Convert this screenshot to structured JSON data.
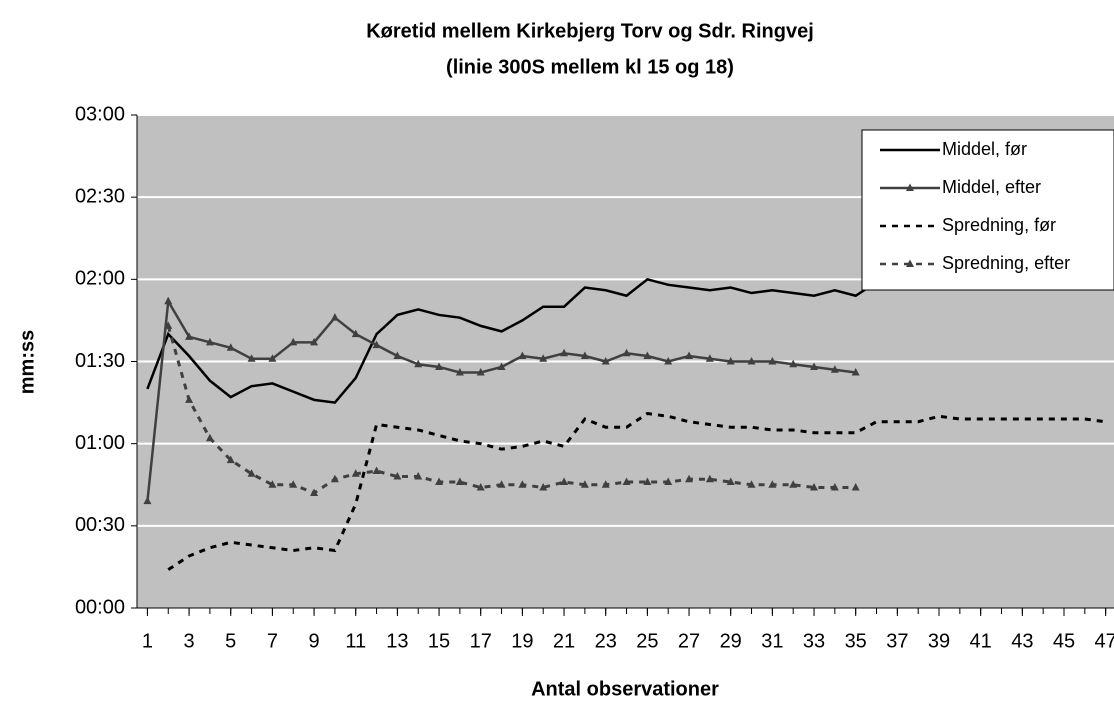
{
  "chart_data": {
    "type": "line",
    "title": "Køretid mellem Kirkebjerg Torv og Sdr. Ringvej",
    "subtitle": "(linie 300S mellem kl 15 og 18)",
    "x_label": "Antal observationer",
    "y_label": "mm:ss",
    "x": [
      1,
      2,
      3,
      4,
      5,
      6,
      7,
      8,
      9,
      10,
      11,
      12,
      13,
      14,
      15,
      16,
      17,
      18,
      19,
      20,
      21,
      22,
      23,
      24,
      25,
      26,
      27,
      28,
      29,
      30,
      31,
      32,
      33,
      34,
      35,
      36,
      37,
      38,
      39,
      40,
      41,
      42,
      43,
      44,
      45,
      46,
      47
    ],
    "xlim": [
      0.5,
      47.4
    ],
    "xticks": [
      1,
      3,
      5,
      7,
      9,
      11,
      13,
      15,
      17,
      19,
      21,
      23,
      25,
      27,
      29,
      31,
      33,
      35,
      37,
      39,
      41,
      43,
      45,
      47
    ],
    "ylim": [
      0,
      180
    ],
    "yticks": [
      {
        "value": 0,
        "label": "00:00"
      },
      {
        "value": 30,
        "label": "00:30"
      },
      {
        "value": 60,
        "label": "01:00"
      },
      {
        "value": 90,
        "label": "01:30"
      },
      {
        "value": 120,
        "label": "02:00"
      },
      {
        "value": 150,
        "label": "02:30"
      },
      {
        "value": 180,
        "label": "03:00"
      }
    ],
    "grid": true,
    "background": "#c0c0c0",
    "legend": "upper right",
    "series": [
      {
        "name": "Middel, før",
        "color": "#000000",
        "dash": false,
        "marker": "none",
        "values": [
          80,
          100,
          92,
          83,
          77,
          81,
          82,
          79,
          76,
          75,
          84,
          100,
          107,
          109,
          107,
          106,
          103,
          101,
          105,
          110,
          110,
          117,
          116,
          114,
          120,
          118,
          117,
          116,
          117,
          115,
          116,
          115,
          114,
          116,
          114,
          119,
          119,
          118,
          122,
          121,
          123,
          122,
          124,
          123,
          122,
          120,
          122
        ]
      },
      {
        "name": "Middel, efter",
        "color": "#404040",
        "dash": false,
        "marker": "triangle",
        "values": [
          39,
          112,
          99,
          97,
          95,
          91,
          91,
          97,
          97,
          106,
          100,
          96,
          92,
          89,
          88,
          86,
          86,
          88,
          92,
          91,
          93,
          92,
          90,
          93,
          92,
          90,
          92,
          91,
          90,
          90,
          90,
          89,
          88,
          87,
          86,
          null,
          null,
          null,
          null,
          null,
          null,
          null,
          null,
          null,
          null,
          null,
          null
        ]
      },
      {
        "name": "Spredning, før",
        "color": "#000000",
        "dash": true,
        "marker": "none",
        "values": [
          null,
          14,
          19,
          22,
          24,
          23,
          22,
          21,
          22,
          21,
          38,
          67,
          66,
          65,
          63,
          61,
          60,
          58,
          59,
          61,
          59,
          69,
          66,
          66,
          71,
          70,
          68,
          67,
          66,
          66,
          65,
          65,
          64,
          64,
          64,
          68,
          68,
          68,
          70,
          69,
          69,
          69,
          69,
          69,
          69,
          69,
          68
        ]
      },
      {
        "name": "Spredning, efter",
        "color": "#404040",
        "dash": true,
        "marker": "triangle",
        "values": [
          null,
          103,
          76,
          62,
          54,
          49,
          45,
          45,
          42,
          47,
          49,
          50,
          48,
          48,
          46,
          46,
          44,
          45,
          45,
          44,
          46,
          45,
          45,
          46,
          46,
          46,
          47,
          47,
          46,
          45,
          45,
          45,
          44,
          44,
          44,
          null,
          null,
          null,
          null,
          null,
          null,
          null,
          null,
          null,
          null,
          null,
          null
        ]
      }
    ]
  }
}
